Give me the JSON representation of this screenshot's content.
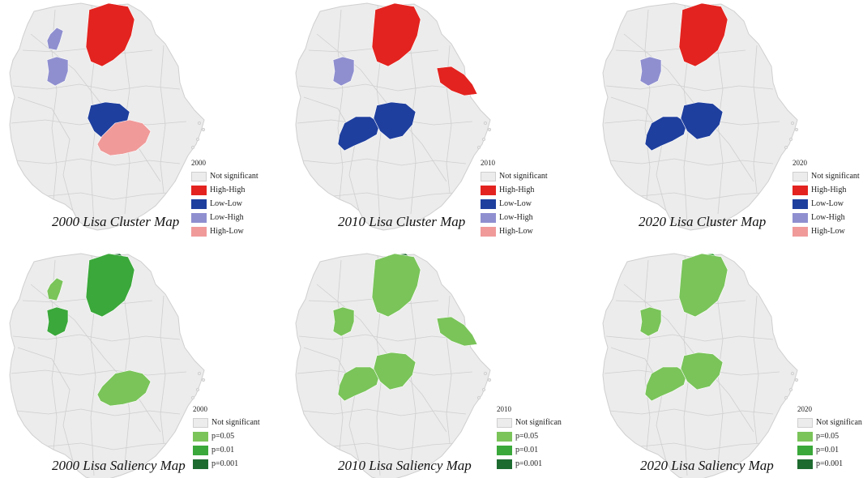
{
  "palette": {
    "base_fill": "#ececec",
    "base_stroke": "#cfcfcf"
  },
  "panels": [
    {
      "caption": "2000 Lisa Cluster Map",
      "legend": {
        "title": "2000",
        "items": [
          {
            "label": "Not significant",
            "color": "#ececec"
          },
          {
            "label": "High-High",
            "color": "#e3231f"
          },
          {
            "label": "Low-Low",
            "color": "#1f3f9e"
          },
          {
            "label": "Low-High",
            "color": "#8f8fd0"
          },
          {
            "label": "High-Low",
            "color": "#f09a9a"
          }
        ]
      },
      "regions": [
        {
          "name": "north-cluster",
          "color": "#e3231f"
        },
        {
          "name": "west-small",
          "color": "#8f8fd0"
        },
        {
          "name": "west-mid",
          "color": "#8f8fd0"
        },
        {
          "name": "central",
          "color": "#1f3f9e"
        },
        {
          "name": "south-central",
          "color": "#f09a9a"
        }
      ]
    },
    {
      "caption": "2010 Lisa Cluster Map",
      "legend": {
        "title": "2010",
        "items": [
          {
            "label": "Not significant",
            "color": "#ececec"
          },
          {
            "label": "High-High",
            "color": "#e3231f"
          },
          {
            "label": "Low-Low",
            "color": "#1f3f9e"
          },
          {
            "label": "Low-High",
            "color": "#8f8fd0"
          },
          {
            "label": "High-Low",
            "color": "#f09a9a"
          }
        ]
      },
      "regions": [
        {
          "name": "north-cluster",
          "color": "#e3231f"
        },
        {
          "name": "west-mid",
          "color": "#8f8fd0"
        },
        {
          "name": "east-coast",
          "color": "#e3231f"
        },
        {
          "name": "southwest-arm",
          "color": "#1f3f9e"
        },
        {
          "name": "central",
          "color": "#1f3f9e"
        }
      ]
    },
    {
      "caption": "2020 Lisa Cluster Map",
      "legend": {
        "title": "2020",
        "items": [
          {
            "label": "Not significant",
            "color": "#ececec"
          },
          {
            "label": "High-High",
            "color": "#e3231f"
          },
          {
            "label": "Low-Low",
            "color": "#1f3f9e"
          },
          {
            "label": "Low-High",
            "color": "#8f8fd0"
          },
          {
            "label": "High-Low",
            "color": "#f09a9a"
          }
        ]
      },
      "regions": [
        {
          "name": "north-cluster",
          "color": "#e3231f"
        },
        {
          "name": "west-mid",
          "color": "#8f8fd0"
        },
        {
          "name": "southwest-arm",
          "color": "#1f3f9e"
        },
        {
          "name": "central",
          "color": "#1f3f9e"
        }
      ]
    },
    {
      "caption": "2000 Lisa Saliency Map",
      "legend": {
        "title": "2000",
        "items": [
          {
            "label": "Not significant",
            "color": "#ececec"
          },
          {
            "label": "p=0.05",
            "color": "#7ac45a"
          },
          {
            "label": "p=0.01",
            "color": "#3aa83a"
          },
          {
            "label": "p=0.001",
            "color": "#1e6b30"
          }
        ]
      },
      "regions": [
        {
          "name": "north-top",
          "color": "#1e6b30"
        },
        {
          "name": "north-cluster",
          "color": "#3aa83a"
        },
        {
          "name": "west-small",
          "color": "#7ac45a"
        },
        {
          "name": "west-mid",
          "color": "#3aa83a"
        },
        {
          "name": "south-central",
          "color": "#7ac45a"
        }
      ]
    },
    {
      "caption": "2010 Lisa Saliency Map",
      "legend": {
        "title": "2010",
        "items": [
          {
            "label": "Not significan",
            "color": "#ececec"
          },
          {
            "label": "p=0.05",
            "color": "#7ac45a"
          },
          {
            "label": "p=0.01",
            "color": "#3aa83a"
          },
          {
            "label": "p=0.001",
            "color": "#1e6b30"
          }
        ]
      },
      "regions": [
        {
          "name": "north-top",
          "color": "#1e6b30"
        },
        {
          "name": "north-cluster",
          "color": "#7ac45a"
        },
        {
          "name": "west-mid",
          "color": "#7ac45a"
        },
        {
          "name": "east-coast",
          "color": "#7ac45a"
        },
        {
          "name": "southwest-arm",
          "color": "#7ac45a"
        },
        {
          "name": "central",
          "color": "#7ac45a"
        }
      ]
    },
    {
      "caption": "2020 Lisa Saliency Map",
      "legend": {
        "title": "2020",
        "items": [
          {
            "label": "Not significan",
            "color": "#ececec"
          },
          {
            "label": "p=0.05",
            "color": "#7ac45a"
          },
          {
            "label": "p=0.01",
            "color": "#3aa83a"
          },
          {
            "label": "p=0.001",
            "color": "#1e6b30"
          }
        ]
      },
      "regions": [
        {
          "name": "north-top",
          "color": "#3aa83a"
        },
        {
          "name": "north-cluster",
          "color": "#7ac45a"
        },
        {
          "name": "west-mid",
          "color": "#7ac45a"
        },
        {
          "name": "southwest-arm",
          "color": "#7ac45a"
        },
        {
          "name": "central",
          "color": "#7ac45a"
        }
      ]
    }
  ]
}
